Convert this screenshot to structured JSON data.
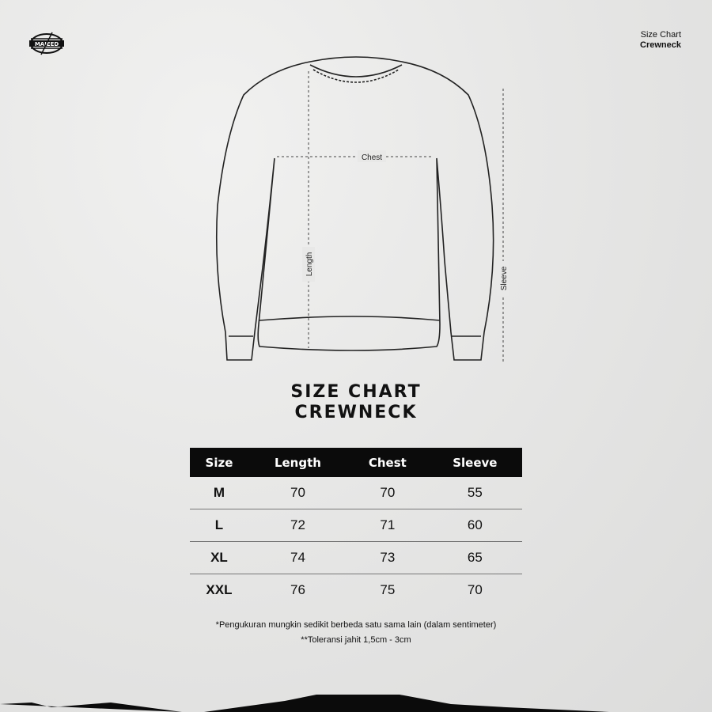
{
  "brand": {
    "logo_text": "MAJEED"
  },
  "header": {
    "line1": "Size Chart",
    "line2": "Crewneck"
  },
  "diagram": {
    "chest": "Chest",
    "length": "Length",
    "sleeve": "Sleeve"
  },
  "title": {
    "line1": "SIZE CHART",
    "line2": "CREWNECK"
  },
  "table": {
    "headers": [
      "Size",
      "Length",
      "Chest",
      "Sleeve"
    ],
    "rows": [
      [
        "M",
        "70",
        "70",
        "55"
      ],
      [
        "L",
        "72",
        "71",
        "60"
      ],
      [
        "XL",
        "74",
        "73",
        "65"
      ],
      [
        "XXL",
        "76",
        "75",
        "70"
      ]
    ]
  },
  "notes": {
    "n1": "*Pengukuran mungkin sedikit berbeda satu sama lain (dalam sentimeter)",
    "n2": "**Toleransi jahit 1,5cm - 3cm"
  }
}
